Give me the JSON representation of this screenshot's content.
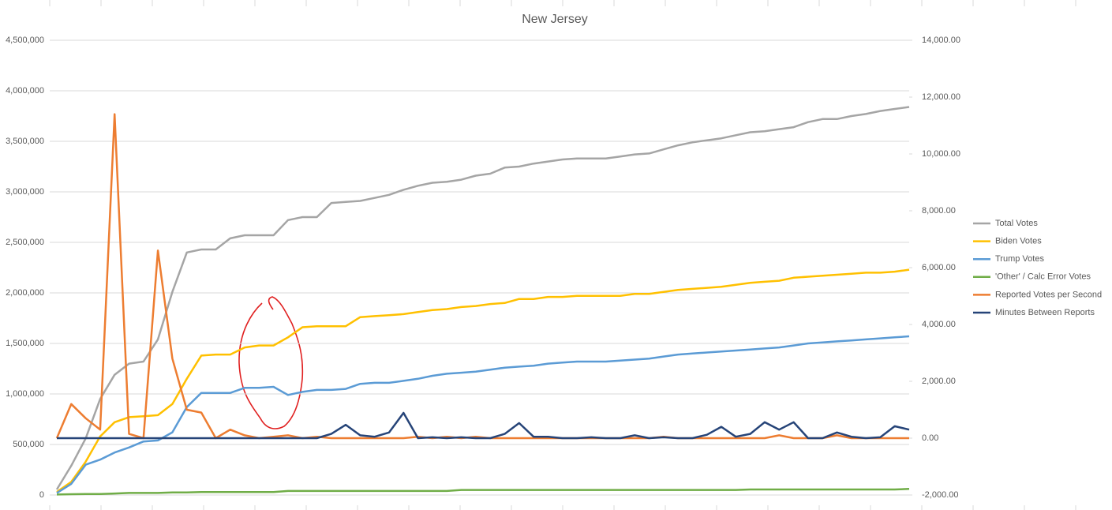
{
  "chart_data": {
    "type": "line",
    "title": "New Jersey",
    "categories": [
      null,
      null,
      null,
      null,
      null,
      null,
      null,
      null,
      null,
      null,
      null,
      null,
      null,
      null,
      null,
      null,
      null,
      null,
      null,
      null,
      null,
      null,
      null,
      null,
      null,
      null,
      null,
      null,
      null,
      null,
      null,
      null,
      null,
      null,
      null,
      null,
      null,
      null,
      null,
      null,
      null,
      null,
      null,
      null,
      null,
      null,
      null,
      null,
      null,
      null,
      null,
      null,
      null,
      null,
      null,
      null,
      null,
      null,
      null,
      null
    ],
    "ylim": [
      0,
      4500000
    ],
    "yticks": [
      0,
      {
        "value": 500000,
        "label": "500,000"
      },
      {
        "value": 1000000,
        "label": "1,000,000"
      },
      {
        "value": 1500000,
        "label": "1,500,000"
      },
      {
        "value": 2000000,
        "label": "2,000,000"
      },
      {
        "value": 2500000,
        "label": "2,500,000"
      },
      {
        "value": 3000000,
        "label": "3,000,000"
      },
      {
        "value": 3500000,
        "label": "3,500,000"
      },
      {
        "value": 4000000,
        "label": "4,000,000"
      },
      {
        "value": 4500000,
        "label": "4,500,000"
      }
    ],
    "y2lim": [
      -2000,
      14000
    ],
    "y2ticks": [
      {
        "value": -2000,
        "label": "-2,000.00"
      },
      {
        "value": 0,
        "label": "0.00"
      },
      {
        "value": 2000,
        "label": "2,000.00"
      },
      {
        "value": 4000,
        "label": "4,000.00"
      },
      {
        "value": 6000,
        "label": "6,000.00"
      },
      {
        "value": 8000,
        "label": "8,000.00"
      },
      {
        "value": 10000,
        "label": "10,000.00"
      },
      {
        "value": 12000,
        "label": "12,000.00"
      },
      {
        "value": 14000,
        "label": "14,000.00"
      }
    ],
    "grid": true,
    "legend": "right",
    "series": [
      {
        "name": "Total Votes",
        "color": "#a5a5a5",
        "values": [
          55000,
          290000,
          560000,
          950000,
          1190000,
          1300000,
          1320000,
          1540000,
          2010000,
          2400000,
          2430000,
          2430000,
          2540000,
          2570000,
          2570000,
          2570000,
          2720000,
          2750000,
          2750000,
          2890000,
          2900000,
          2910000,
          2940000,
          2970000,
          3020000,
          3060000,
          3090000,
          3100000,
          3120000,
          3160000,
          3180000,
          3240000,
          3250000,
          3280000,
          3300000,
          3320000,
          3330000,
          3330000,
          3330000,
          3350000,
          3370000,
          3380000,
          3420000,
          3460000,
          3490000,
          3510000,
          3530000,
          3560000,
          3590000,
          3600000,
          3620000,
          3640000,
          3690000,
          3720000,
          3720000,
          3750000,
          3770000,
          3800000,
          3820000,
          3840000
        ]
      },
      {
        "name": "Biden Votes",
        "color": "#ffc000",
        "values": [
          30000,
          130000,
          330000,
          580000,
          720000,
          770000,
          780000,
          790000,
          900000,
          1150000,
          1380000,
          1390000,
          1390000,
          1460000,
          1480000,
          1480000,
          1560000,
          1660000,
          1670000,
          1670000,
          1670000,
          1760000,
          1770000,
          1780000,
          1790000,
          1810000,
          1830000,
          1840000,
          1860000,
          1870000,
          1890000,
          1900000,
          1940000,
          1940000,
          1960000,
          1960000,
          1970000,
          1970000,
          1970000,
          1970000,
          1990000,
          1990000,
          2010000,
          2030000,
          2040000,
          2050000,
          2060000,
          2080000,
          2100000,
          2110000,
          2120000,
          2150000,
          2160000,
          2170000,
          2180000,
          2190000,
          2200000,
          2200000,
          2210000,
          2230000
        ]
      },
      {
        "name": "Trump Votes",
        "color": "#5b9bd5",
        "values": [
          20000,
          110000,
          300000,
          350000,
          420000,
          470000,
          530000,
          540000,
          620000,
          870000,
          1010000,
          1010000,
          1010000,
          1060000,
          1060000,
          1070000,
          990000,
          1020000,
          1040000,
          1040000,
          1050000,
          1100000,
          1110000,
          1110000,
          1130000,
          1150000,
          1180000,
          1200000,
          1210000,
          1220000,
          1240000,
          1260000,
          1270000,
          1280000,
          1300000,
          1310000,
          1320000,
          1320000,
          1320000,
          1330000,
          1340000,
          1350000,
          1370000,
          1390000,
          1400000,
          1410000,
          1420000,
          1430000,
          1440000,
          1450000,
          1460000,
          1480000,
          1500000,
          1510000,
          1520000,
          1530000,
          1540000,
          1550000,
          1560000,
          1570000
        ]
      },
      {
        "name": "'Other' / Calc Error Votes",
        "color": "#70ad47",
        "values": [
          5000,
          8000,
          10000,
          10000,
          15000,
          20000,
          20000,
          20000,
          25000,
          25000,
          30000,
          30000,
          30000,
          30000,
          30000,
          30000,
          40000,
          40000,
          40000,
          40000,
          40000,
          40000,
          40000,
          40000,
          40000,
          40000,
          40000,
          40000,
          50000,
          50000,
          50000,
          50000,
          50000,
          50000,
          50000,
          50000,
          50000,
          50000,
          50000,
          50000,
          50000,
          50000,
          50000,
          50000,
          50000,
          50000,
          50000,
          50000,
          55000,
          55000,
          55000,
          55000,
          55000,
          55000,
          55000,
          55000,
          55000,
          55000,
          55000,
          60000
        ]
      },
      {
        "name": "Reported Votes per Second",
        "color": "#ed7d31",
        "axis": "y2",
        "values": [
          0,
          1200,
          700,
          300,
          11400,
          150,
          0,
          6600,
          2800,
          1000,
          900,
          0,
          300,
          100,
          0,
          50,
          100,
          0,
          50,
          0,
          0,
          0,
          0,
          0,
          0,
          50,
          0,
          50,
          0,
          50,
          0,
          0,
          0,
          0,
          0,
          0,
          0,
          0,
          0,
          0,
          0,
          0,
          50,
          0,
          0,
          0,
          0,
          0,
          0,
          0,
          100,
          0,
          0,
          0,
          100,
          0,
          0,
          0,
          0,
          0
        ]
      },
      {
        "name": "Minutes Between Reports",
        "color": "#264478",
        "axis": "y2",
        "values": [
          0,
          0,
          0,
          0,
          0,
          0,
          0,
          0,
          0,
          0,
          0,
          0,
          0,
          0,
          0,
          0,
          0,
          0,
          0,
          150,
          470,
          100,
          50,
          200,
          890,
          0,
          30,
          0,
          30,
          0,
          0,
          150,
          530,
          50,
          50,
          0,
          0,
          30,
          0,
          0,
          100,
          0,
          30,
          0,
          0,
          120,
          400,
          50,
          150,
          560,
          300,
          560,
          0,
          0,
          200,
          50,
          0,
          30,
          420,
          300
        ]
      }
    ]
  }
}
